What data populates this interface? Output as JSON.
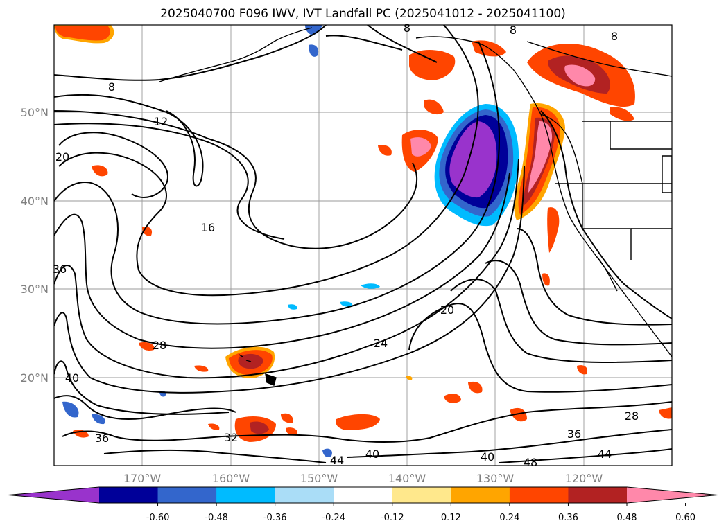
{
  "title": "2025040700 F096 IWV, IVT Landfall PC (2025041012 - 2025041100)",
  "lat_labels": [
    "50°N",
    "40°N",
    "30°N",
    "20°N"
  ],
  "lon_labels": [
    "170°W",
    "160°W",
    "150°W",
    "140°W",
    "130°W",
    "120°W"
  ],
  "contour_labels": [
    "8",
    "12",
    "16",
    "20",
    "36",
    "40",
    "28",
    "32",
    "36",
    "20",
    "24",
    "28",
    "36",
    "44",
    "40",
    "40",
    "44",
    "48",
    "8",
    "8",
    "8"
  ],
  "colorbar": {
    "ticks": [
      "-0.60",
      "-0.48",
      "-0.36",
      "-0.24",
      "-0.12",
      "0.12",
      "0.24",
      "0.36",
      "0.48",
      "0.60"
    ],
    "colors": [
      "#9933cc",
      "#000099",
      "#3366cc",
      "#00bbff",
      "#aaddf7",
      "#ffffff",
      "#ffe88c",
      "#ffa500",
      "#ff4500",
      "#b22222",
      "#ff88aa"
    ]
  }
}
